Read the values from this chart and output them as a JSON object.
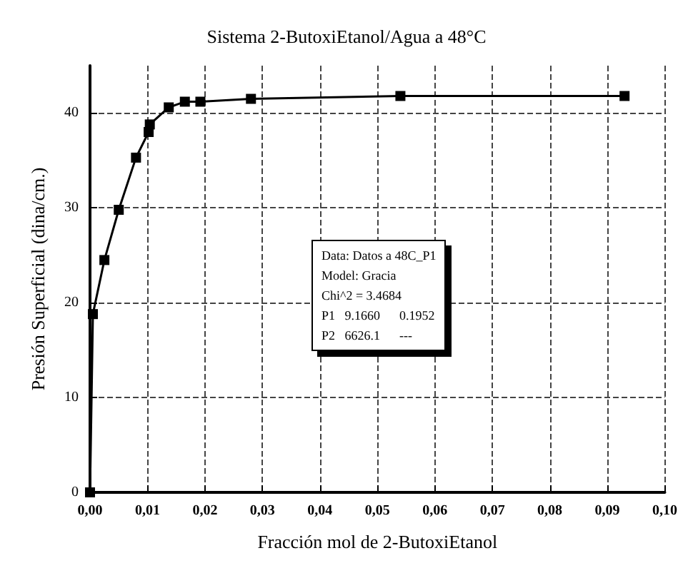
{
  "chart_data": {
    "type": "line",
    "title": "Sistema 2-ButoxiEtanol/Agua a 48°C",
    "xlabel": "Fracción mol de 2-ButoxiEtanol",
    "ylabel": "Presión Superficial (dina/cm.)",
    "x": [
      0,
      0.0005,
      0.0025,
      0.005,
      0.008,
      0.0102,
      0.0104,
      0.0137,
      0.0165,
      0.0192,
      0.028,
      0.054,
      0.093
    ],
    "series": [
      {
        "color": "#000000",
        "values": [
          0,
          18.8,
          24.5,
          29.8,
          35.3,
          38.0,
          38.8,
          40.6,
          41.2,
          41.2,
          41.5,
          41.8,
          41.8
        ]
      }
    ],
    "xlim": [
      0,
      0.1
    ],
    "xticks": [
      {
        "value": 0,
        "label": "0,00"
      },
      {
        "value": 0.01,
        "label": "0,01"
      },
      {
        "value": 0.02,
        "label": "0,02"
      },
      {
        "value": 0.03,
        "label": "0,03"
      },
      {
        "value": 0.04,
        "label": "0,04"
      },
      {
        "value": 0.05,
        "label": "0,05"
      },
      {
        "value": 0.06,
        "label": "0,06"
      },
      {
        "value": 0.07,
        "label": "0,07"
      },
      {
        "value": 0.08,
        "label": "0,08"
      },
      {
        "value": 0.09,
        "label": "0,09"
      },
      {
        "value": 0.1,
        "label": "0,10"
      }
    ],
    "ylim": [
      0,
      45
    ],
    "yticks": [
      0,
      10,
      20,
      30,
      40
    ],
    "grid": true,
    "marker": "square",
    "line_style": "solid",
    "annotations": [
      "Data: Datos a 48C_P1",
      "Model: Gracia",
      "Chi^2 = 3.4684",
      "P1   9.1660      0.1952",
      "P2   6626.1      ---"
    ]
  }
}
